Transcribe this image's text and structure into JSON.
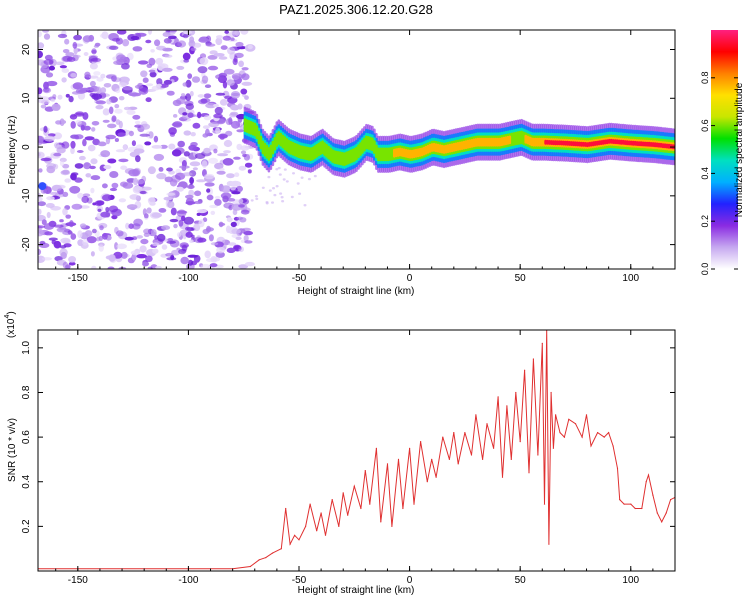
{
  "title": "PAZ1.2025.306.12.20.G28",
  "chart_data": [
    {
      "type": "heatmap",
      "name": "spectrogram",
      "xlabel": "Height of straight line (km)",
      "ylabel": "Frequency (Hz)",
      "xlim": [
        -168,
        120
      ],
      "ylim": [
        -25,
        24
      ],
      "xticks": [
        -150,
        -100,
        -50,
        0,
        50,
        100
      ],
      "yticks": [
        -20,
        -10,
        0,
        10,
        20
      ],
      "colorbar": {
        "label": "Normalized spectral amplitude",
        "range": [
          0,
          1
        ],
        "ticks": [
          0.0,
          0.2,
          0.4,
          0.6,
          0.8
        ],
        "colors": [
          "#ffffff",
          "#c6a8f0",
          "#8a2be2",
          "#2222ff",
          "#00b0ff",
          "#00e0c0",
          "#00e000",
          "#c8e600",
          "#ffe000",
          "#ff8000",
          "#ff0000",
          "#ff2080"
        ]
      },
      "noise_region": {
        "x_range": [
          -168,
          -72
        ],
        "freq_range": [
          -25,
          24
        ]
      },
      "signal_track": {
        "x": [
          -75,
          -70,
          -67,
          -64,
          -60,
          -55,
          -50,
          -45,
          -40,
          -35,
          -30,
          -25,
          -20,
          -17,
          -15,
          -10,
          -5,
          0,
          5,
          10,
          15,
          20,
          30,
          40,
          50,
          55,
          60,
          70,
          80,
          90,
          100,
          110,
          120
        ],
        "freq": [
          4.5,
          3.5,
          0,
          -1.5,
          2,
          0,
          -1,
          -1.5,
          0,
          -2,
          -2.5,
          -1.5,
          1,
          0.5,
          -1.5,
          -1.5,
          -1,
          -1.5,
          -1,
          0,
          -0.5,
          0,
          1,
          1,
          2,
          1,
          1,
          0.8,
          0.5,
          1.2,
          0.8,
          0.5,
          0
        ],
        "amplitude": [
          0.5,
          0.6,
          0.55,
          0.5,
          0.55,
          0.6,
          0.5,
          0.55,
          0.5,
          0.6,
          0.55,
          0.5,
          0.55,
          0.5,
          0.6,
          0.65,
          0.7,
          0.75,
          0.8,
          0.85,
          0.8,
          0.75,
          0.7,
          0.75,
          0.6,
          0.8,
          0.85,
          0.95,
          0.9,
          0.85,
          0.9,
          0.95,
          0.9
        ]
      }
    },
    {
      "type": "line",
      "name": "snr",
      "xlabel": "Height of straight line (km)",
      "ylabel": "SNR (10 * v/v)",
      "y_scale_label": "(x10",
      "y_scale_exponent": "4",
      "y_scale_close": ")",
      "xlim": [
        -168,
        120
      ],
      "ylim": [
        0,
        1.08
      ],
      "xticks": [
        -150,
        -100,
        -50,
        0,
        50,
        100
      ],
      "yticks": [
        0.2,
        0.4,
        0.6,
        0.8,
        1.0
      ],
      "line_color": "#e03030",
      "series": [
        {
          "name": "SNR",
          "x": [
            -168,
            -120,
            -80,
            -72,
            -68,
            -65,
            -62,
            -58,
            -56,
            -54,
            -52,
            -50,
            -47,
            -45,
            -42,
            -40,
            -38,
            -35,
            -32,
            -30,
            -28,
            -25,
            -22,
            -20,
            -18,
            -15,
            -13,
            -10,
            -8,
            -5,
            -3,
            0,
            2,
            5,
            8,
            10,
            12,
            15,
            18,
            20,
            22,
            25,
            28,
            30,
            33,
            35,
            38,
            40,
            42,
            44,
            46,
            48,
            50,
            52,
            54,
            56,
            58,
            60,
            61,
            62,
            63,
            64,
            65,
            66,
            68,
            70,
            72,
            75,
            78,
            80,
            82,
            85,
            88,
            90,
            92,
            94,
            95,
            97,
            100,
            102,
            105,
            107,
            108,
            110,
            112,
            114,
            116,
            118,
            120
          ],
          "y": [
            0.01,
            0.01,
            0.01,
            0.02,
            0.05,
            0.06,
            0.08,
            0.1,
            0.28,
            0.12,
            0.16,
            0.14,
            0.2,
            0.3,
            0.18,
            0.26,
            0.16,
            0.32,
            0.2,
            0.35,
            0.25,
            0.38,
            0.28,
            0.45,
            0.3,
            0.55,
            0.22,
            0.48,
            0.2,
            0.5,
            0.28,
            0.55,
            0.3,
            0.58,
            0.4,
            0.5,
            0.42,
            0.6,
            0.5,
            0.62,
            0.48,
            0.62,
            0.52,
            0.7,
            0.5,
            0.66,
            0.55,
            0.78,
            0.42,
            0.74,
            0.5,
            0.8,
            0.58,
            0.9,
            0.44,
            0.95,
            0.52,
            1.02,
            0.3,
            1.08,
            0.12,
            0.8,
            0.55,
            0.7,
            0.62,
            0.6,
            0.68,
            0.66,
            0.6,
            0.7,
            0.56,
            0.62,
            0.6,
            0.62,
            0.56,
            0.46,
            0.32,
            0.3,
            0.3,
            0.28,
            0.28,
            0.4,
            0.43,
            0.34,
            0.26,
            0.22,
            0.26,
            0.32,
            0.33
          ]
        }
      ]
    }
  ]
}
